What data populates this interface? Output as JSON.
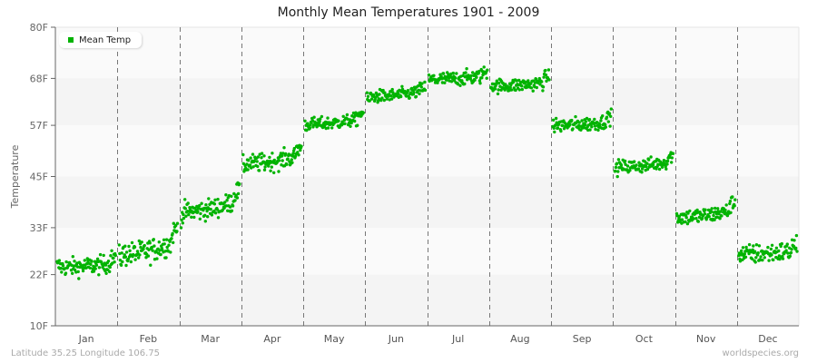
{
  "chart_data": {
    "type": "scatter",
    "title": "Monthly Mean Temperatures 1901 - 2009",
    "xlabel": "",
    "ylabel": "Temperature",
    "ylim": [
      10,
      80
    ],
    "yticks": [
      "10F",
      "22F",
      "33F",
      "45F",
      "57F",
      "68F",
      "80F"
    ],
    "ytick_values": [
      10,
      22,
      33,
      45,
      57,
      68,
      80
    ],
    "categories": [
      "Jan",
      "Feb",
      "Mar",
      "Apr",
      "May",
      "Jun",
      "Jul",
      "Aug",
      "Sep",
      "Oct",
      "Nov",
      "Dec"
    ],
    "legend": [
      {
        "name": "Mean Temp",
        "color": "#00b300"
      }
    ],
    "legend_position": "top-left",
    "grid": "alternating horizontal bands, dashed vertical month separators",
    "series": [
      {
        "name": "Mean Temp",
        "color": "#00b300",
        "years": [
          1901,
          2009
        ],
        "points_per_month": 109,
        "monthly_summary": [
          {
            "month": "Jan",
            "start": 24.0,
            "end": 26.0,
            "mean": 23.5,
            "min": 18.0,
            "max": 28.5
          },
          {
            "month": "Feb",
            "start": 26.0,
            "end": 33.0,
            "mean": 27.5,
            "min": 20.5,
            "max": 34.0
          },
          {
            "month": "Mar",
            "start": 36.0,
            "end": 42.0,
            "mean": 37.5,
            "min": 32.0,
            "max": 43.5
          },
          {
            "month": "Apr",
            "start": 47.5,
            "end": 52.0,
            "mean": 48.5,
            "min": 43.5,
            "max": 54.0
          },
          {
            "month": "May",
            "start": 57.0,
            "end": 60.0,
            "mean": 57.5,
            "min": 53.5,
            "max": 61.0
          },
          {
            "month": "Jun",
            "start": 63.0,
            "end": 66.0,
            "mean": 64.5,
            "min": 61.5,
            "max": 69.0
          },
          {
            "month": "Jul",
            "start": 67.5,
            "end": 69.5,
            "mean": 68.0,
            "min": 64.0,
            "max": 72.5
          },
          {
            "month": "Aug",
            "start": 66.5,
            "end": 68.5,
            "mean": 66.0,
            "min": 62.0,
            "max": 70.0
          },
          {
            "month": "Sep",
            "start": 57.0,
            "end": 59.0,
            "mean": 57.0,
            "min": 53.0,
            "max": 61.5
          },
          {
            "month": "Oct",
            "start": 47.0,
            "end": 50.0,
            "mean": 47.5,
            "min": 43.5,
            "max": 51.5
          },
          {
            "month": "Nov",
            "start": 35.5,
            "end": 39.0,
            "mean": 35.5,
            "min": 31.0,
            "max": 40.5
          },
          {
            "month": "Dec",
            "start": 27.0,
            "end": 29.0,
            "mean": 26.5,
            "min": 20.5,
            "max": 32.0
          }
        ]
      }
    ]
  },
  "footer": {
    "location": "Latitude 35.25 Longitude 106.75",
    "source": "worldspecies.org"
  }
}
